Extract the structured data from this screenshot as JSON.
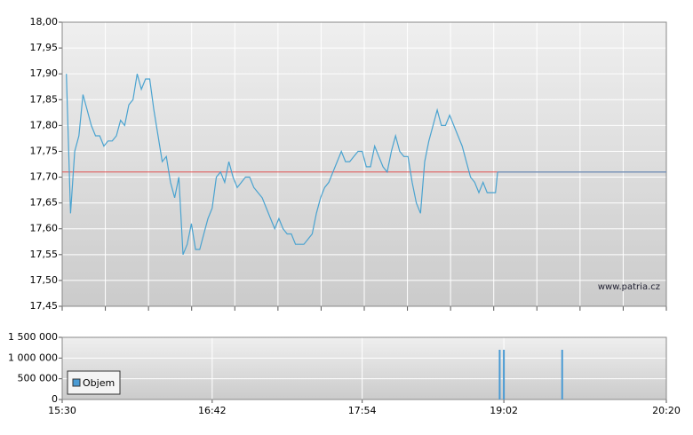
{
  "chart_data": [
    {
      "type": "line",
      "color": "#4aa3d0",
      "xlim": [
        "15:30",
        "20:20"
      ],
      "ylim": [
        17.45,
        18.0
      ],
      "yticks": [
        {
          "value": 18.0,
          "label": "18,00"
        },
        {
          "value": 17.95,
          "label": "17,95"
        },
        {
          "value": 17.9,
          "label": "17,90"
        },
        {
          "value": 17.85,
          "label": "17,85"
        },
        {
          "value": 17.8,
          "label": "17,80"
        },
        {
          "value": 17.75,
          "label": "17,75"
        },
        {
          "value": 17.7,
          "label": "17,70"
        },
        {
          "value": 17.65,
          "label": "17,65"
        },
        {
          "value": 17.6,
          "label": "17,60"
        },
        {
          "value": 17.55,
          "label": "17,55"
        },
        {
          "value": 17.5,
          "label": "17,50"
        },
        {
          "value": 17.45,
          "label": "17,45"
        }
      ],
      "x": [
        "15:32",
        "15:34",
        "15:36",
        "15:38",
        "15:40",
        "15:42",
        "15:44",
        "15:46",
        "15:48",
        "15:50",
        "15:52",
        "15:54",
        "15:56",
        "15:58",
        "16:00",
        "16:02",
        "16:04",
        "16:06",
        "16:08",
        "16:10",
        "16:12",
        "16:14",
        "16:16",
        "16:18",
        "16:20",
        "16:22",
        "16:24",
        "16:26",
        "16:28",
        "16:30",
        "16:32",
        "16:34",
        "16:36",
        "16:38",
        "16:40",
        "16:42",
        "16:44",
        "16:46",
        "16:48",
        "16:50",
        "16:52",
        "16:54",
        "16:56",
        "16:58",
        "17:00",
        "17:02",
        "17:04",
        "17:06",
        "17:08",
        "17:10",
        "17:12",
        "17:14",
        "17:16",
        "17:18",
        "17:20",
        "17:22",
        "17:24",
        "17:26",
        "17:28",
        "17:30",
        "17:32",
        "17:34",
        "17:36",
        "17:38",
        "17:40",
        "17:42",
        "17:44",
        "17:46",
        "17:48",
        "17:50",
        "17:52",
        "17:54",
        "17:56",
        "17:58",
        "18:00",
        "18:02",
        "18:04",
        "18:06",
        "18:08",
        "18:10",
        "18:12",
        "18:14",
        "18:16",
        "18:18",
        "18:20",
        "18:22",
        "18:24",
        "18:26",
        "18:28",
        "18:30",
        "18:32",
        "18:34",
        "18:36",
        "18:38",
        "18:40",
        "18:42",
        "18:44",
        "18:46",
        "18:48",
        "18:50",
        "18:52",
        "18:54",
        "18:56",
        "18:58",
        "18:59"
      ],
      "values": [
        17.9,
        17.63,
        17.75,
        17.78,
        17.86,
        17.83,
        17.8,
        17.78,
        17.78,
        17.76,
        17.77,
        17.77,
        17.78,
        17.81,
        17.8,
        17.84,
        17.85,
        17.9,
        17.87,
        17.89,
        17.89,
        17.83,
        17.78,
        17.73,
        17.74,
        17.69,
        17.66,
        17.7,
        17.55,
        17.57,
        17.61,
        17.56,
        17.56,
        17.59,
        17.62,
        17.64,
        17.7,
        17.71,
        17.69,
        17.73,
        17.7,
        17.68,
        17.69,
        17.7,
        17.7,
        17.68,
        17.67,
        17.66,
        17.64,
        17.62,
        17.6,
        17.62,
        17.6,
        17.59,
        17.59,
        17.57,
        17.57,
        17.57,
        17.58,
        17.59,
        17.63,
        17.66,
        17.68,
        17.69,
        17.71,
        17.73,
        17.75,
        17.73,
        17.73,
        17.74,
        17.75,
        17.75,
        17.72,
        17.72,
        17.76,
        17.74,
        17.72,
        17.71,
        17.75,
        17.78,
        17.75,
        17.74,
        17.74,
        17.69,
        17.65,
        17.63,
        17.73,
        17.77,
        17.8,
        17.83,
        17.8,
        17.8,
        17.82,
        17.8,
        17.78,
        17.76,
        17.73,
        17.7,
        17.69,
        17.67,
        17.69,
        17.67,
        17.67,
        17.67,
        17.71
      ],
      "reference_line": {
        "value": 17.71,
        "color": "#e05050",
        "extension_color": "#7a94b8"
      },
      "watermark": "www.patria.cz"
    },
    {
      "type": "bar",
      "xlim": [
        "15:30",
        "20:20"
      ],
      "xticks": [
        "15:30",
        "16:42",
        "17:54",
        "19:02",
        "20:20"
      ],
      "ylim": [
        0,
        1500000
      ],
      "yticks": [
        0,
        {
          "value": 500000,
          "label": "500 000"
        },
        {
          "value": 1000000,
          "label": "1 000 000"
        },
        {
          "value": 1500000,
          "label": "1 500 000"
        }
      ],
      "x": [
        "19:00",
        "19:02",
        "19:30"
      ],
      "series": [
        {
          "name": "Objem",
          "color": "#4a9bd4",
          "values": [
            1200000,
            1200000,
            1200000
          ]
        }
      ],
      "legend": "lower left"
    }
  ]
}
